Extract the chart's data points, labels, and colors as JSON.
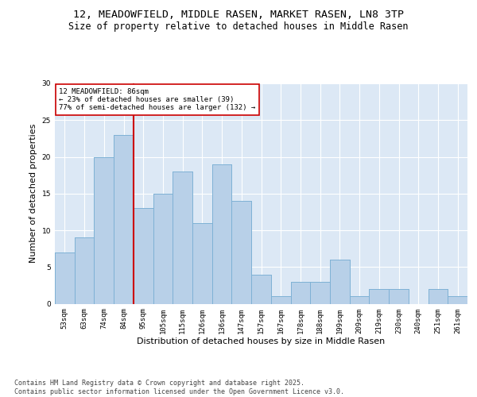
{
  "title_line1": "12, MEADOWFIELD, MIDDLE RASEN, MARKET RASEN, LN8 3TP",
  "title_line2": "Size of property relative to detached houses in Middle Rasen",
  "xlabel": "Distribution of detached houses by size in Middle Rasen",
  "ylabel": "Number of detached properties",
  "bins": [
    "53sqm",
    "63sqm",
    "74sqm",
    "84sqm",
    "95sqm",
    "105sqm",
    "115sqm",
    "126sqm",
    "136sqm",
    "147sqm",
    "157sqm",
    "167sqm",
    "178sqm",
    "188sqm",
    "199sqm",
    "209sqm",
    "219sqm",
    "230sqm",
    "240sqm",
    "251sqm",
    "261sqm"
  ],
  "values": [
    7,
    9,
    20,
    23,
    13,
    15,
    18,
    11,
    19,
    14,
    4,
    1,
    3,
    3,
    6,
    1,
    2,
    2,
    0,
    2,
    1
  ],
  "bar_color": "#b8d0e8",
  "bar_edge_color": "#7aafd4",
  "bg_color": "#dce8f5",
  "grid_color": "#ffffff",
  "vline_x_index": 3,
  "vline_color": "#cc0000",
  "annotation_text": "12 MEADOWFIELD: 86sqm\n← 23% of detached houses are smaller (39)\n77% of semi-detached houses are larger (132) →",
  "annotation_box_color": "#ffffff",
  "annotation_box_edge": "#cc0000",
  "ylim": [
    0,
    30
  ],
  "yticks": [
    0,
    5,
    10,
    15,
    20,
    25,
    30
  ],
  "footnote": "Contains HM Land Registry data © Crown copyright and database right 2025.\nContains public sector information licensed under the Open Government Licence v3.0.",
  "title_fontsize": 9.5,
  "subtitle_fontsize": 8.5,
  "axis_label_fontsize": 8,
  "tick_fontsize": 6.5,
  "annotation_fontsize": 6.5,
  "footnote_fontsize": 6
}
